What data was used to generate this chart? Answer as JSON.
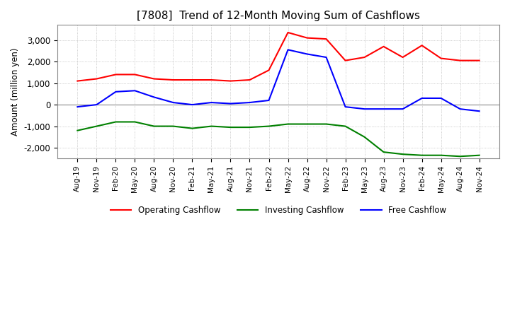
{
  "title": "[7808]  Trend of 12-Month Moving Sum of Cashflows",
  "ylabel": "Amount (million yen)",
  "x_labels": [
    "Aug-19",
    "Nov-19",
    "Feb-20",
    "May-20",
    "Aug-20",
    "Nov-20",
    "Feb-21",
    "May-21",
    "Aug-21",
    "Nov-21",
    "Feb-22",
    "May-22",
    "Aug-22",
    "Nov-22",
    "Feb-23",
    "May-23",
    "Aug-23",
    "Nov-23",
    "Feb-24",
    "May-24",
    "Aug-24",
    "Nov-24"
  ],
  "operating_cashflow": [
    1100,
    1200,
    1400,
    1400,
    1200,
    1150,
    1150,
    1150,
    1100,
    1150,
    1600,
    3350,
    3100,
    3050,
    2050,
    2200,
    2700,
    2200,
    2750,
    2150,
    2050,
    2050
  ],
  "investing_cashflow": [
    -1200,
    -1000,
    -800,
    -800,
    -1000,
    -1000,
    -1100,
    -1000,
    -1050,
    -1050,
    -1000,
    -900,
    -900,
    -900,
    -1000,
    -1500,
    -2200,
    -2300,
    -2350,
    -2350,
    -2400,
    -2350
  ],
  "free_cashflow": [
    -100,
    0,
    600,
    650,
    350,
    100,
    0,
    100,
    50,
    100,
    200,
    2550,
    2350,
    2200,
    -100,
    -200,
    -200,
    -200,
    300,
    300,
    -200,
    -300
  ],
  "operating_color": "#ff0000",
  "investing_color": "#008000",
  "free_color": "#0000ff",
  "ylim": [
    -2500,
    3700
  ],
  "yticks": [
    -2000,
    -1000,
    0,
    1000,
    2000,
    3000
  ],
  "background_color": "#ffffff",
  "grid_color": "#aaaaaa",
  "title_fontsize": 11,
  "legend_labels": [
    "Operating Cashflow",
    "Investing Cashflow",
    "Free Cashflow"
  ]
}
